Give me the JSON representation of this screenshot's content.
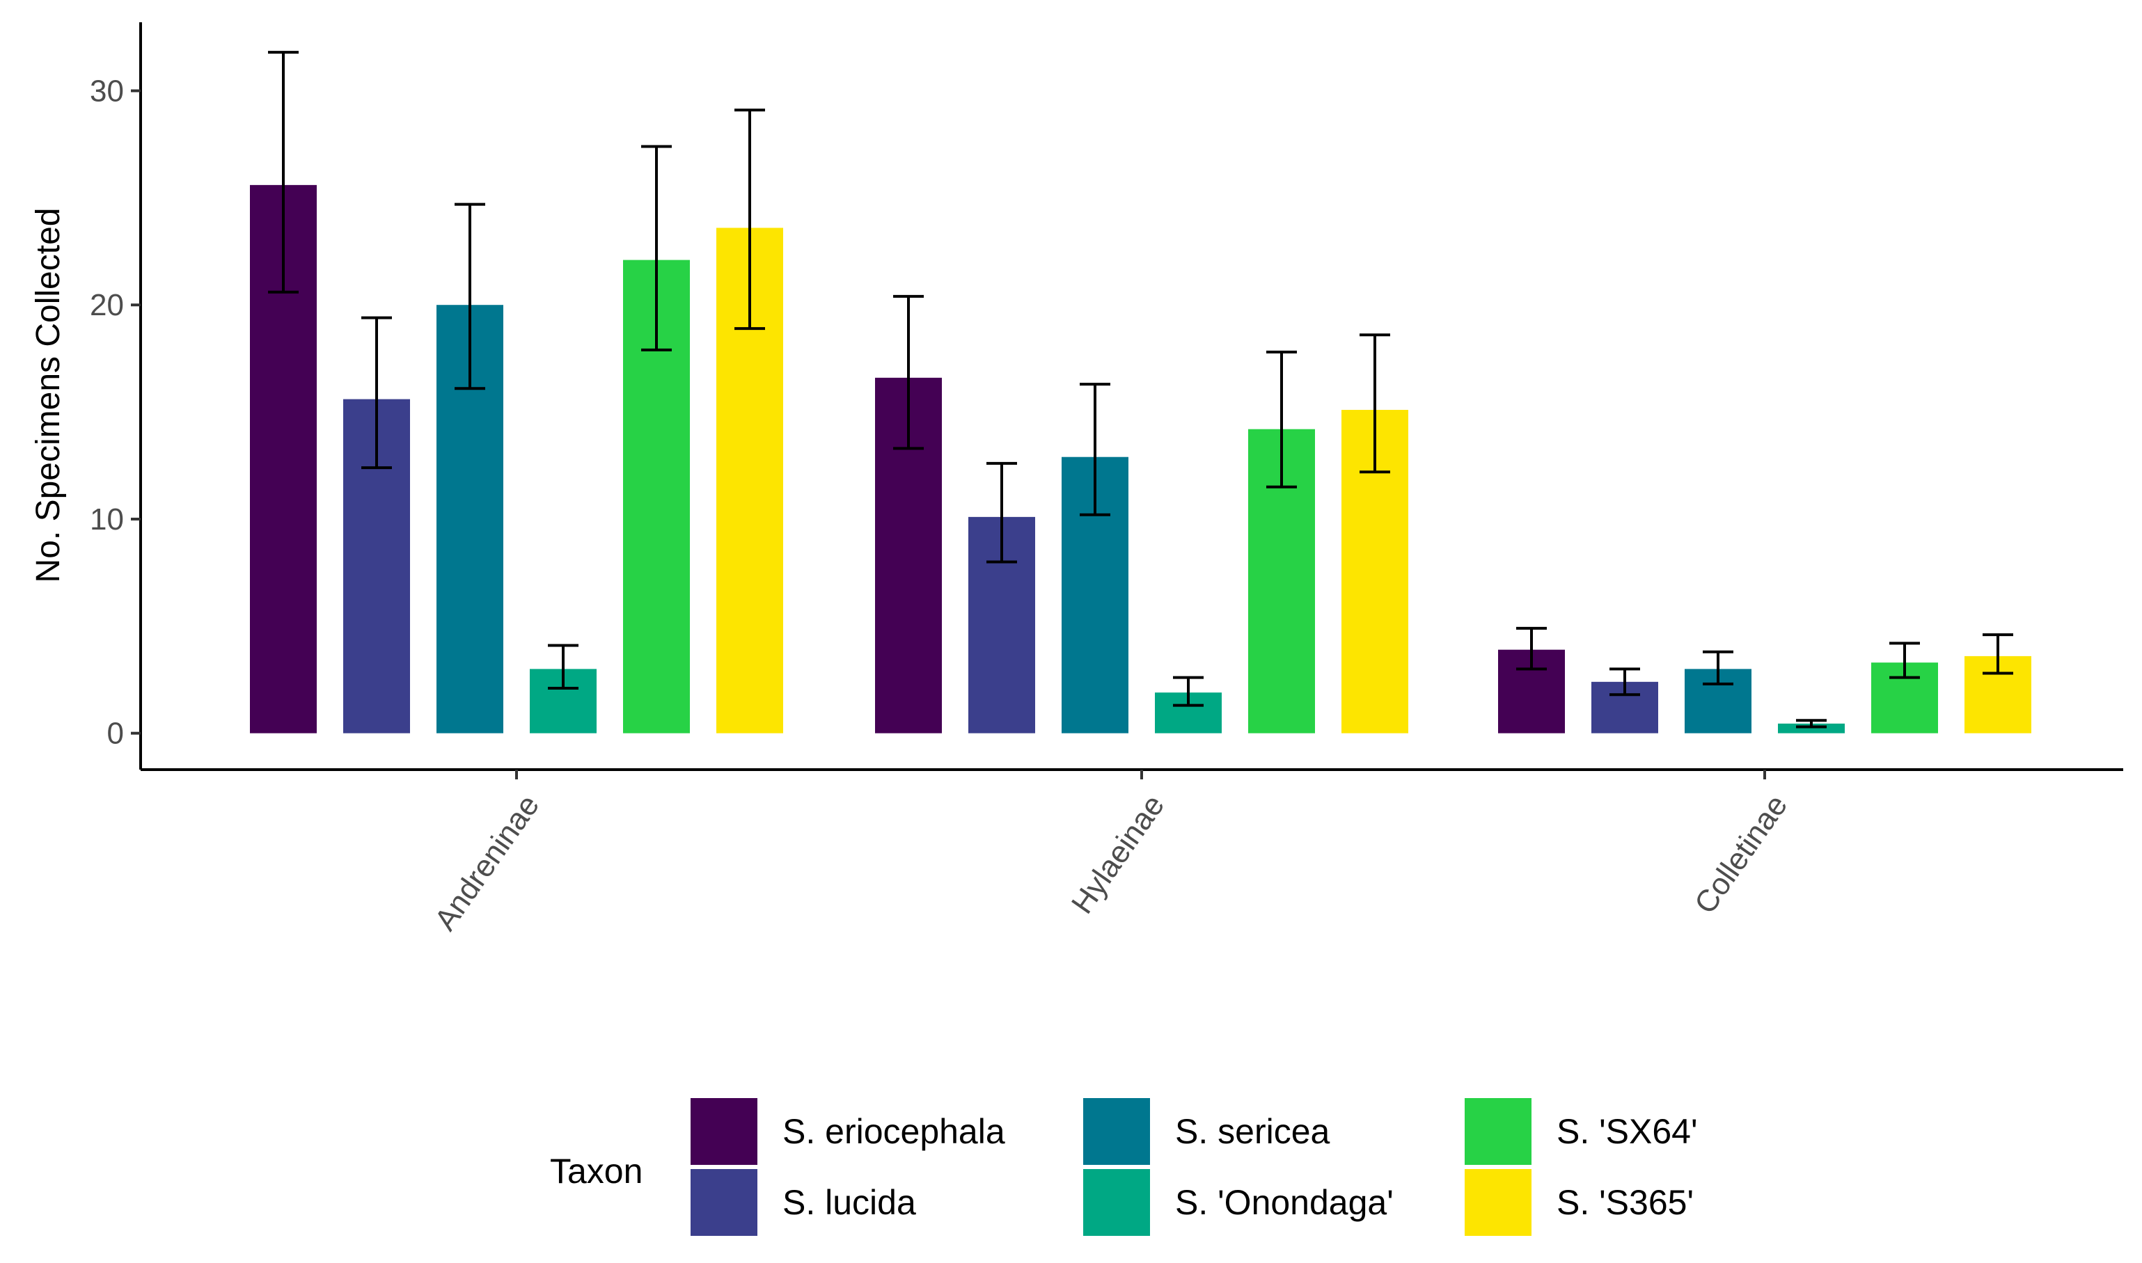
{
  "chart_data": {
    "type": "bar",
    "title": "",
    "xlabel": "",
    "ylabel": "No. Specimens Collected",
    "ylim": [
      -1.7,
      33.2
    ],
    "yticks": [
      0,
      10,
      20,
      30
    ],
    "categories": [
      "Andreninae",
      "Hylaeinae",
      "Colletinae"
    ],
    "series": [
      {
        "name": "S. eriocephala",
        "color": "#440154",
        "values": [
          25.6,
          16.6,
          3.9
        ],
        "err_low": [
          20.6,
          13.3,
          3.0
        ],
        "err_high": [
          31.8,
          20.4,
          4.9
        ]
      },
      {
        "name": "S. lucida",
        "color": "#3b3f8c",
        "values": [
          15.6,
          10.1,
          2.4
        ],
        "err_low": [
          12.4,
          8.0,
          1.8
        ],
        "err_high": [
          19.4,
          12.6,
          3.0
        ]
      },
      {
        "name": "S. sericea",
        "color": "#00778f",
        "values": [
          20.0,
          12.9,
          3.0
        ],
        "err_low": [
          16.1,
          10.2,
          2.3
        ],
        "err_high": [
          24.7,
          16.3,
          3.8
        ]
      },
      {
        "name": "S. 'Onondaga'",
        "color": "#00a884",
        "values": [
          3.0,
          1.9,
          0.45
        ],
        "err_low": [
          2.1,
          1.3,
          0.3
        ],
        "err_high": [
          4.1,
          2.6,
          0.6
        ]
      },
      {
        "name": "S. 'SX64'",
        "color": "#27d246",
        "values": [
          22.1,
          14.2,
          3.3
        ],
        "err_low": [
          17.9,
          11.5,
          2.6
        ],
        "err_high": [
          27.4,
          17.8,
          4.2
        ]
      },
      {
        "name": "S. 'S365'",
        "color": "#fde500",
        "values": [
          23.6,
          15.1,
          3.6
        ],
        "err_low": [
          18.9,
          12.2,
          2.8
        ],
        "err_high": [
          29.1,
          18.6,
          4.6
        ]
      }
    ],
    "legend": {
      "title": "Taxon",
      "position": "bottom"
    }
  }
}
